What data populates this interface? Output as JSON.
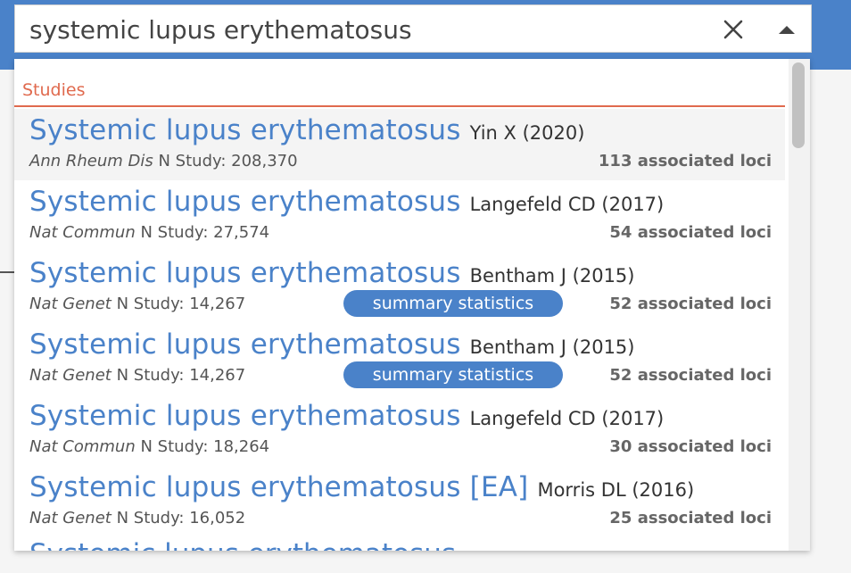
{
  "search": {
    "value": "systemic lupus erythematosus",
    "clear_icon": "close-icon",
    "toggle_icon": "caret-up-icon"
  },
  "dropdown": {
    "group_label": "Studies",
    "items": [
      {
        "trait": "Systemic lupus erythematosus",
        "author": "Yin X (2020)",
        "journal": "Ann Rheum Dis",
        "n_study": "N Study: 208,370",
        "badge": "",
        "loci": "113 associated loci"
      },
      {
        "trait": "Systemic lupus erythematosus",
        "author": "Langefeld CD (2017)",
        "journal": "Nat Commun",
        "n_study": "N Study: 27,574",
        "badge": "",
        "loci": "54 associated loci"
      },
      {
        "trait": "Systemic lupus erythematosus",
        "author": "Bentham J (2015)",
        "journal": "Nat Genet",
        "n_study": "N Study: 14,267",
        "badge": "summary statistics",
        "loci": "52 associated loci"
      },
      {
        "trait": "Systemic lupus erythematosus",
        "author": "Bentham J (2015)",
        "journal": "Nat Genet",
        "n_study": "N Study: 14,267",
        "badge": "summary statistics",
        "loci": "52 associated loci"
      },
      {
        "trait": "Systemic lupus erythematosus",
        "author": "Langefeld CD (2017)",
        "journal": "Nat Commun",
        "n_study": "N Study: 18,264",
        "badge": "",
        "loci": "30 associated loci"
      },
      {
        "trait": "Systemic lupus erythematosus [EA]",
        "author": "Morris DL (2016)",
        "journal": "Nat Genet",
        "n_study": "N Study: 16,052",
        "badge": "",
        "loci": "25 associated loci"
      }
    ],
    "partial_item_trait": "Systemic lupus erythematosus"
  },
  "colors": {
    "accent": "#4a82c9",
    "group_header": "#e06a4e"
  }
}
